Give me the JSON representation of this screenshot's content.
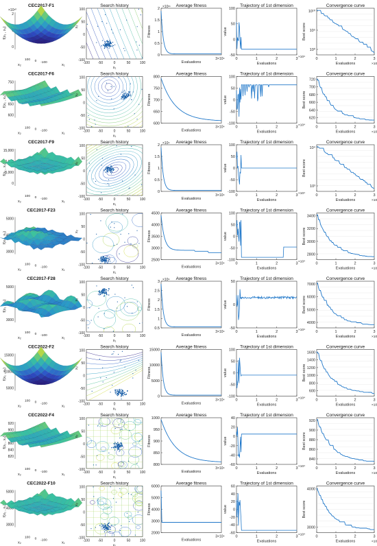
{
  "colors": {
    "line": "#1f77c9",
    "scatter": "#1a5fa8",
    "contour": [
      "#3b2f8f",
      "#3f6fcf",
      "#3aa6c8",
      "#5cc6a0",
      "#b7d64a",
      "#f0e442"
    ],
    "surface": [
      "#2b1b7a",
      "#2f4fc8",
      "#2a9ac8",
      "#39c2a0",
      "#a6d44c",
      "#f4e43a"
    ],
    "grid": "#d9d9d9",
    "axis": "#333333"
  },
  "column_titles": {
    "history": "Search history",
    "avg": "Average fitness",
    "traj": "Trajectory of 1st dimension",
    "conv": "Convergence curve"
  },
  "common_labels": {
    "evaluations": "Evaluations",
    "fitness": "Fitness",
    "value": "value",
    "best_score": "Best score",
    "x1": "x₁",
    "x2": "x₂",
    "f": "f(x₁ , x₂)"
  },
  "chart_data": [
    {
      "id": "cec2017-f1",
      "title": "CEC2017-F1",
      "type": "line",
      "surface": {
        "z_ticks": [
          "2",
          "1",
          "0"
        ],
        "z_exp": "×10¹⁰",
        "shape": "bowl",
        "axis_ticks": [
          "100",
          "0",
          "-100"
        ]
      },
      "history": {
        "ticks": [
          "-100",
          "-50",
          "0",
          "50",
          "100"
        ],
        "pattern": "flow",
        "cluster": [
          -25,
          -40
        ]
      },
      "avg": {
        "y_ticks": [
          "2",
          "1.5",
          "1",
          "0.5",
          "0"
        ],
        "y_exp": "×10¹¹",
        "x_max": "3×10⁴",
        "curve": "sharp"
      },
      "traj": {
        "y_ticks": [
          "100",
          "50",
          "0",
          "-50"
        ],
        "x_ticks": [
          "0",
          "1",
          "2",
          "3"
        ],
        "x_exp": "×10⁴",
        "pattern": "settle_neg"
      },
      "conv": {
        "y_ticks": [
          "10¹⁰",
          "10⁵",
          "10⁰"
        ],
        "x_ticks": [
          "0",
          "1",
          "2",
          "3"
        ],
        "x_exp": "×10⁴",
        "log": true
      }
    },
    {
      "id": "cec2017-f6",
      "title": "CEC2017-F6",
      "type": "line",
      "surface": {
        "z_ticks": [
          "750",
          "700",
          "650",
          "600"
        ],
        "z_exp": "",
        "shape": "ridges",
        "axis_ticks": [
          "100",
          "0",
          "-100"
        ]
      },
      "history": {
        "ticks": [
          "-100",
          "-50",
          "0",
          "50",
          "100"
        ],
        "pattern": "circles",
        "cluster": [
          40,
          25
        ]
      },
      "avg": {
        "y_ticks": [
          "800",
          "750",
          "700",
          "650",
          "600"
        ],
        "y_exp": "",
        "x_max": "3×10⁴",
        "curve": "smooth"
      },
      "traj": {
        "y_ticks": [
          "100",
          "50",
          "0",
          "-50",
          "-100"
        ],
        "x_ticks": [
          "0",
          "1",
          "2",
          "3"
        ],
        "x_exp": "×10⁴",
        "pattern": "high_jumpy"
      },
      "conv": {
        "y_ticks": [
          "720",
          "700",
          "680",
          "660",
          "640",
          "620"
        ],
        "x_ticks": [
          "0",
          "1",
          "2",
          "3"
        ],
        "x_exp": "×10⁴",
        "log": false
      }
    },
    {
      "id": "cec2017-f9",
      "title": "CEC2017-F9",
      "type": "line",
      "surface": {
        "z_ticks": [
          "15,000",
          "10,000",
          "5,000",
          "0"
        ],
        "z_exp": "",
        "shape": "spikes",
        "axis_ticks": [
          "100",
          "0",
          "-100"
        ]
      },
      "history": {
        "ticks": [
          "-100",
          "-50",
          "0",
          "50",
          "100"
        ],
        "pattern": "ellipse",
        "cluster": [
          -20,
          5
        ]
      },
      "avg": {
        "y_ticks": [
          "2",
          "1.5",
          "1",
          "0.5",
          "0"
        ],
        "y_exp": "×10⁴",
        "x_max": "3×10⁴",
        "curve": "sharp"
      },
      "traj": {
        "y_ticks": [
          "100",
          "50",
          "0",
          "-50",
          "-100"
        ],
        "x_ticks": [
          "0",
          "1",
          "2",
          "3"
        ],
        "x_exp": "×10⁴",
        "pattern": "mid_flat"
      },
      "conv": {
        "y_ticks": [
          "10⁴",
          "10³"
        ],
        "x_ticks": [
          "0",
          "1",
          "2",
          "3"
        ],
        "x_exp": "×10⁴",
        "log": true
      }
    },
    {
      "id": "cec2017-f23",
      "title": "CEC2017-F23",
      "type": "line",
      "surface": {
        "z_ticks": [
          "5000",
          "4000",
          "3000"
        ],
        "z_exp": "",
        "shape": "hills",
        "axis_ticks": [
          "100",
          "0",
          "-100"
        ]
      },
      "history": {
        "ticks": [
          "-100",
          "-50",
          "0",
          "50",
          "100"
        ],
        "pattern": "blobs",
        "cluster": [
          -40,
          -80
        ]
      },
      "avg": {
        "y_ticks": [
          "4500",
          "4000",
          "3500",
          "3000",
          "2500"
        ],
        "y_exp": "",
        "x_max": "3×10⁴",
        "curve": "steps"
      },
      "traj": {
        "y_ticks": [
          "100",
          "50",
          "0",
          "-50",
          "-100"
        ],
        "x_ticks": [
          "0",
          "1",
          "2",
          "3"
        ],
        "x_exp": "×10⁴",
        "pattern": "low_step"
      },
      "conv": {
        "y_ticks": [
          "3400",
          "3200",
          "3000",
          "2800"
        ],
        "x_ticks": [
          "0",
          "1",
          "2",
          "3"
        ],
        "x_exp": "×10⁴",
        "log": false
      }
    },
    {
      "id": "cec2017-f28",
      "title": "CEC2017-F28",
      "type": "line",
      "surface": {
        "z_ticks": [
          "5000",
          "4000",
          "3000"
        ],
        "z_exp": "",
        "shape": "waves",
        "axis_ticks": [
          "100",
          "0",
          "-100"
        ]
      },
      "history": {
        "ticks": [
          "-100",
          "-50",
          "0",
          "50",
          "100"
        ],
        "pattern": "blobs",
        "cluster": [
          -40,
          60
        ]
      },
      "avg": {
        "y_ticks": [
          "3",
          "2.5",
          "2",
          "1.5",
          "1",
          "0.5"
        ],
        "y_exp": "×10⁴",
        "x_max": "3×10⁴",
        "curve": "sharp"
      },
      "traj": {
        "y_ticks": [
          "50",
          "0",
          "-50"
        ],
        "x_ticks": [
          "0",
          "1",
          "2",
          "3"
        ],
        "x_exp": "×10⁴",
        "pattern": "mid_noise"
      },
      "conv": {
        "y_ticks": [
          "7000",
          "6000",
          "5000",
          "4000"
        ],
        "x_ticks": [
          "0",
          "1",
          "2",
          "3"
        ],
        "x_exp": "×10⁴",
        "log": false
      }
    },
    {
      "id": "cec2022-f2",
      "title": "CEC2022-F2",
      "type": "line",
      "surface": {
        "z_ticks": [
          "15000",
          "10000",
          "5000"
        ],
        "z_exp": "",
        "shape": "bowl",
        "axis_ticks": [
          "100",
          "0",
          "-100"
        ]
      },
      "history": {
        "ticks": [
          "-100",
          "-50",
          "0",
          "50",
          "100"
        ],
        "pattern": "diagonal",
        "cluster": [
          20,
          -70
        ]
      },
      "avg": {
        "y_ticks": [
          "15000",
          "10000",
          "5000",
          "0"
        ],
        "y_exp": "",
        "x_max": "3×10⁴",
        "curve": "sharp"
      },
      "traj": {
        "y_ticks": [
          "100",
          "50",
          "0",
          "-50",
          "-100"
        ],
        "x_ticks": [
          "0",
          "1",
          "2",
          "3"
        ],
        "x_exp": "×10⁴",
        "pattern": "high_flat"
      },
      "conv": {
        "y_ticks": [
          "1600",
          "1400",
          "1200",
          "1000",
          "800",
          "600"
        ],
        "x_ticks": [
          "0",
          "1",
          "2",
          "3"
        ],
        "x_exp": "×10⁴",
        "log": false
      }
    },
    {
      "id": "cec2022-f4",
      "title": "CEC2022-F4",
      "type": "line",
      "surface": {
        "z_ticks": [
          "920",
          "900",
          "880",
          "860",
          "840",
          "820"
        ],
        "z_exp": "",
        "shape": "ridges",
        "axis_ticks": [
          "100",
          "0",
          "-100"
        ]
      },
      "history": {
        "ticks": [
          "-100",
          "-50",
          "0",
          "50",
          "100"
        ],
        "pattern": "grid",
        "cluster": [
          10,
          -10
        ]
      },
      "avg": {
        "y_ticks": [
          "1000",
          "950",
          "900",
          "850",
          "800"
        ],
        "y_exp": "",
        "x_max": "3×10⁴",
        "curve": "smooth"
      },
      "traj": {
        "y_ticks": [
          "40",
          "20",
          "0",
          "-20",
          "-40",
          "-60"
        ],
        "x_ticks": [
          "0",
          "1",
          "2",
          "3"
        ],
        "x_exp": "×10⁴",
        "pattern": "zero_flat"
      },
      "conv": {
        "y_ticks": [
          "920",
          "900",
          "880",
          "860",
          "840"
        ],
        "x_ticks": [
          "0",
          "1",
          "2",
          "3"
        ],
        "x_exp": "×10⁴",
        "log": false
      }
    },
    {
      "id": "cec2022-f10",
      "title": "CEC2022-F10",
      "type": "line",
      "surface": {
        "z_ticks": [
          "5000",
          "4000",
          "3000"
        ],
        "z_exp": "",
        "shape": "spikes",
        "axis_ticks": [
          "100",
          "0",
          "-100"
        ]
      },
      "history": {
        "ticks": [
          "-100",
          "-50",
          "0",
          "50",
          "100"
        ],
        "pattern": "grid",
        "cluster": [
          -30,
          -60
        ]
      },
      "avg": {
        "y_ticks": [
          "6000",
          "5000",
          "4000",
          "3000",
          "2000"
        ],
        "y_exp": "",
        "x_max": "3×10⁴",
        "curve": "flat"
      },
      "traj": {
        "y_ticks": [
          "60",
          "40",
          "20",
          "0",
          "-20",
          "-40",
          "-60"
        ],
        "x_ticks": [
          "0",
          "1",
          "2",
          "3"
        ],
        "x_exp": "×10⁴",
        "pattern": "low_flat"
      },
      "conv": {
        "y_ticks": [
          "4000",
          "3000"
        ],
        "x_ticks": [
          "0",
          "1",
          "2",
          "3"
        ],
        "x_exp": "×10⁴",
        "log": false
      }
    }
  ]
}
